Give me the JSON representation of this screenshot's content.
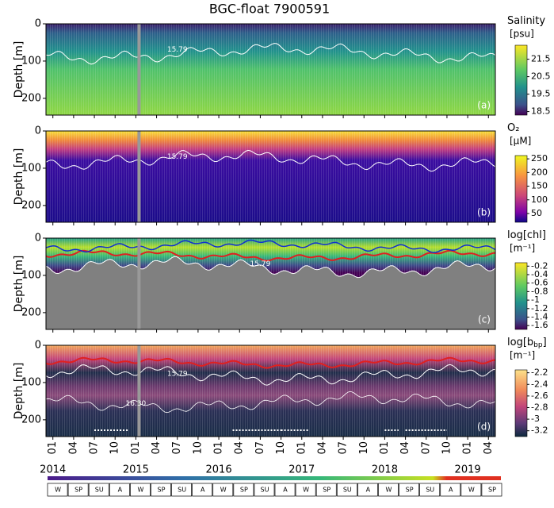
{
  "title": "BGC-float 7900591",
  "x_axis": {
    "xlim": [
      "2013-12",
      "2019-05"
    ],
    "xticks": [
      {
        "value": "2014-01",
        "label": "01"
      },
      {
        "value": "2014-04",
        "label": "04"
      },
      {
        "value": "2014-07",
        "label": "07"
      },
      {
        "value": "2014-10",
        "label": "10"
      },
      {
        "value": "2015-01",
        "label": "01"
      },
      {
        "value": "2015-04",
        "label": "04"
      },
      {
        "value": "2015-07",
        "label": "07"
      },
      {
        "value": "2015-10",
        "label": "10"
      },
      {
        "value": "2016-01",
        "label": "01"
      },
      {
        "value": "2016-04",
        "label": "04"
      },
      {
        "value": "2016-07",
        "label": "07"
      },
      {
        "value": "2016-10",
        "label": "10"
      },
      {
        "value": "2017-01",
        "label": "01"
      },
      {
        "value": "2017-04",
        "label": "04"
      },
      {
        "value": "2017-07",
        "label": "07"
      },
      {
        "value": "2017-10",
        "label": "10"
      },
      {
        "value": "2018-01",
        "label": "01"
      },
      {
        "value": "2018-04",
        "label": "04"
      },
      {
        "value": "2018-07",
        "label": "07"
      },
      {
        "value": "2018-10",
        "label": "10"
      },
      {
        "value": "2019-01",
        "label": "01"
      },
      {
        "value": "2019-04",
        "label": "04"
      }
    ],
    "year_labels": [
      {
        "value": "2014-01",
        "label": "2014"
      },
      {
        "value": "2015-01",
        "label": "2015"
      },
      {
        "value": "2016-01",
        "label": "2016"
      },
      {
        "value": "2017-01",
        "label": "2017"
      },
      {
        "value": "2018-01",
        "label": "2018"
      },
      {
        "value": "2019-01",
        "label": "2019"
      }
    ]
  },
  "seasons": [
    "W",
    "SP",
    "SU",
    "A",
    "W",
    "SP",
    "SU",
    "A",
    "W",
    "SP",
    "SU",
    "A",
    "W",
    "SP",
    "SU",
    "A",
    "W",
    "SP",
    "SU",
    "A",
    "W",
    "SP"
  ],
  "chart_data": [
    {
      "type": "heatmap",
      "ylabel": "Depth [m]",
      "ylim": [
        0,
        245
      ],
      "yticks": [
        0,
        100,
        200
      ],
      "panel_label": "(a)",
      "colorbar": {
        "label": "Salinity",
        "label_sub": "",
        "label_end": "",
        "unit": "[psu]",
        "clim": [
          18.3,
          22.3
        ],
        "ticks": [
          21.5,
          20.5,
          19.5,
          18.5
        ]
      },
      "isoline_labels": [
        {
          "text": "15.79",
          "depth": 78,
          "at": "2015-07"
        }
      ]
    },
    {
      "type": "heatmap",
      "ylabel": "Depth [m]",
      "ylim": [
        0,
        245
      ],
      "yticks": [
        0,
        100,
        200
      ],
      "panel_label": "(b)",
      "colorbar": {
        "label": "O₂",
        "label_sub": "",
        "label_end": "",
        "unit": "[μM]",
        "clim": [
          18,
          262
        ],
        "ticks": [
          250,
          200,
          150,
          100,
          50
        ]
      },
      "isoline_labels": [
        {
          "text": "15.79",
          "depth": 78,
          "at": "2015-07"
        }
      ]
    },
    {
      "type": "heatmap",
      "ylabel": "Depth [m]",
      "ylim": [
        0,
        245
      ],
      "yticks": [
        0,
        100,
        200
      ],
      "panel_label": "(c)",
      "colorbar": {
        "label": "log[chl]",
        "label_sub": "",
        "label_end": "",
        "unit": "[m⁻¹]",
        "clim": [
          -1.69,
          -0.12
        ],
        "ticks": [
          -0.2,
          -0.4,
          -0.6,
          -0.8,
          -1.0,
          -1.2,
          -1.4,
          -1.6
        ]
      },
      "isoline_labels": [
        {
          "text": "15.79",
          "depth": 78,
          "at": "2016-07"
        }
      ]
    },
    {
      "type": "heatmap",
      "ylabel": "Depth [m]",
      "ylim": [
        0,
        245
      ],
      "yticks": [
        0,
        100,
        200
      ],
      "panel_label": "(d)",
      "colorbar": {
        "label": "log[b",
        "label_sub": "bp",
        "label_end": "]",
        "unit": "[m⁻¹]",
        "clim": [
          -3.3,
          -2.15
        ],
        "ticks": [
          -2.2,
          -2.4,
          -2.6,
          -2.8,
          -3.0,
          -3.2
        ]
      },
      "isoline_labels": [
        {
          "text": "15.79",
          "depth": 85,
          "at": "2015-07"
        },
        {
          "text": "16.30",
          "depth": 165,
          "at": "2015-01"
        }
      ]
    }
  ]
}
